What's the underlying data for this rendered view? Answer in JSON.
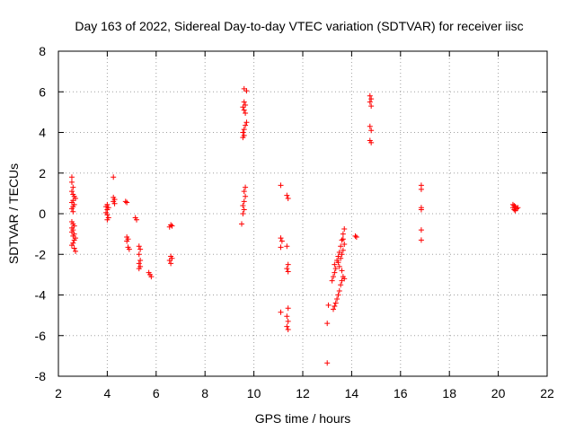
{
  "chart_data": {
    "type": "scatter",
    "title": "Day 163 of 2022, Sidereal Day-to-day VTEC variation (SDTVAR) for receiver iisc",
    "xlabel": "GPS time / hours",
    "ylabel": "SDTVAR / TECUs",
    "xlim": [
      2,
      22
    ],
    "ylim": [
      -8,
      8
    ],
    "x_ticks": [
      "2",
      "4",
      "6",
      "8",
      "10",
      "12",
      "14",
      "16",
      "18",
      "20",
      "22"
    ],
    "y_ticks": [
      "-8",
      "-6",
      "-4",
      "-2",
      "0",
      "2",
      "4",
      "6",
      "8"
    ],
    "grid": true,
    "marker": "plus",
    "series": [
      {
        "name": "SDTVAR",
        "color": "#ff0000",
        "points": [
          [
            2.55,
            1.8
          ],
          [
            2.55,
            1.55
          ],
          [
            2.6,
            1.3
          ],
          [
            2.55,
            1.1
          ],
          [
            2.6,
            0.95
          ],
          [
            2.65,
            0.85
          ],
          [
            2.7,
            0.75
          ],
          [
            2.6,
            0.65
          ],
          [
            2.55,
            0.55
          ],
          [
            2.65,
            0.45
          ],
          [
            2.6,
            0.35
          ],
          [
            2.55,
            0.25
          ],
          [
            2.6,
            0.1
          ],
          [
            2.55,
            -0.4
          ],
          [
            2.6,
            -0.5
          ],
          [
            2.65,
            -0.6
          ],
          [
            2.55,
            -0.7
          ],
          [
            2.6,
            -0.8
          ],
          [
            2.55,
            -0.9
          ],
          [
            2.65,
            -1.0
          ],
          [
            2.6,
            -1.1
          ],
          [
            2.7,
            -1.2
          ],
          [
            2.65,
            -1.3
          ],
          [
            2.6,
            -1.45
          ],
          [
            2.55,
            -1.55
          ],
          [
            2.65,
            -1.7
          ],
          [
            2.7,
            -1.85
          ],
          [
            4.0,
            0.45
          ],
          [
            3.95,
            0.35
          ],
          [
            4.05,
            0.3
          ],
          [
            4.0,
            0.2
          ],
          [
            3.95,
            0.05
          ],
          [
            4.0,
            -0.05
          ],
          [
            4.05,
            -0.2
          ],
          [
            4.0,
            -0.3
          ],
          [
            4.25,
            1.8
          ],
          [
            4.25,
            0.8
          ],
          [
            4.3,
            0.7
          ],
          [
            4.25,
            0.6
          ],
          [
            4.3,
            0.5
          ],
          [
            4.75,
            0.6
          ],
          [
            4.8,
            0.55
          ],
          [
            4.8,
            -1.15
          ],
          [
            4.85,
            -1.25
          ],
          [
            4.8,
            -1.35
          ],
          [
            4.85,
            -1.65
          ],
          [
            4.9,
            -1.75
          ],
          [
            5.15,
            -0.2
          ],
          [
            5.2,
            -0.3
          ],
          [
            5.3,
            -1.6
          ],
          [
            5.35,
            -1.75
          ],
          [
            5.3,
            -2.0
          ],
          [
            5.35,
            -2.3
          ],
          [
            5.3,
            -2.45
          ],
          [
            5.35,
            -2.6
          ],
          [
            5.3,
            -2.7
          ],
          [
            5.7,
            -2.9
          ],
          [
            5.75,
            -3.0
          ],
          [
            5.8,
            -3.1
          ],
          [
            6.6,
            -0.55
          ],
          [
            6.65,
            -0.6
          ],
          [
            6.55,
            -0.65
          ],
          [
            6.6,
            -2.1
          ],
          [
            6.65,
            -2.2
          ],
          [
            6.55,
            -2.3
          ],
          [
            6.6,
            -2.45
          ],
          [
            9.6,
            6.15
          ],
          [
            9.7,
            6.05
          ],
          [
            9.6,
            5.5
          ],
          [
            9.65,
            5.35
          ],
          [
            9.55,
            5.25
          ],
          [
            9.6,
            5.1
          ],
          [
            9.65,
            4.95
          ],
          [
            9.7,
            4.5
          ],
          [
            9.65,
            4.35
          ],
          [
            9.6,
            4.15
          ],
          [
            9.55,
            4.0
          ],
          [
            9.6,
            3.85
          ],
          [
            9.55,
            3.75
          ],
          [
            9.65,
            1.3
          ],
          [
            9.6,
            1.1
          ],
          [
            9.65,
            0.85
          ],
          [
            9.6,
            0.6
          ],
          [
            9.55,
            0.4
          ],
          [
            9.6,
            0.2
          ],
          [
            9.55,
            0.0
          ],
          [
            9.5,
            -0.5
          ],
          [
            11.1,
            1.4
          ],
          [
            11.35,
            0.9
          ],
          [
            11.4,
            0.75
          ],
          [
            11.1,
            -1.2
          ],
          [
            11.15,
            -1.35
          ],
          [
            11.1,
            -1.65
          ],
          [
            11.35,
            -1.6
          ],
          [
            11.4,
            -2.5
          ],
          [
            11.35,
            -2.7
          ],
          [
            11.4,
            -2.85
          ],
          [
            11.1,
            -4.85
          ],
          [
            11.4,
            -4.65
          ],
          [
            11.35,
            -5.05
          ],
          [
            11.4,
            -5.3
          ],
          [
            11.35,
            -5.55
          ],
          [
            11.4,
            -5.7
          ],
          [
            13.0,
            -5.4
          ],
          [
            13.0,
            -7.35
          ],
          [
            13.05,
            -4.5
          ],
          [
            13.2,
            -3.3
          ],
          [
            13.25,
            -3.1
          ],
          [
            13.3,
            -2.9
          ],
          [
            13.35,
            -2.7
          ],
          [
            13.3,
            -2.5
          ],
          [
            13.4,
            -2.3
          ],
          [
            13.45,
            -2.1
          ],
          [
            13.5,
            -1.9
          ],
          [
            13.55,
            -1.6
          ],
          [
            13.6,
            -1.3
          ],
          [
            13.65,
            -1.0
          ],
          [
            13.7,
            -0.75
          ],
          [
            13.25,
            -4.7
          ],
          [
            13.3,
            -4.55
          ],
          [
            13.35,
            -4.4
          ],
          [
            13.4,
            -4.2
          ],
          [
            13.45,
            -4.0
          ],
          [
            13.5,
            -3.8
          ],
          [
            13.55,
            -3.5
          ],
          [
            13.6,
            -3.3
          ],
          [
            13.65,
            -3.1
          ],
          [
            13.7,
            -3.2
          ],
          [
            13.6,
            -2.8
          ],
          [
            13.5,
            -2.6
          ],
          [
            13.45,
            -2.4
          ],
          [
            13.55,
            -2.2
          ],
          [
            13.6,
            -2.0
          ],
          [
            13.65,
            -1.8
          ],
          [
            13.7,
            -1.5
          ],
          [
            13.65,
            -1.25
          ],
          [
            14.15,
            -1.1
          ],
          [
            14.2,
            -1.15
          ],
          [
            14.75,
            5.8
          ],
          [
            14.8,
            5.65
          ],
          [
            14.75,
            5.5
          ],
          [
            14.8,
            5.3
          ],
          [
            14.75,
            4.3
          ],
          [
            14.8,
            4.1
          ],
          [
            14.75,
            3.6
          ],
          [
            14.8,
            3.5
          ],
          [
            16.85,
            1.4
          ],
          [
            16.85,
            1.2
          ],
          [
            16.85,
            0.3
          ],
          [
            16.85,
            0.2
          ],
          [
            16.85,
            -0.8
          ],
          [
            16.85,
            -1.3
          ],
          [
            20.6,
            0.45
          ],
          [
            20.65,
            0.4
          ],
          [
            20.7,
            0.35
          ],
          [
            20.6,
            0.3
          ],
          [
            20.75,
            0.25
          ],
          [
            20.65,
            0.2
          ],
          [
            20.7,
            0.15
          ],
          [
            20.8,
            0.3
          ]
        ]
      }
    ]
  }
}
